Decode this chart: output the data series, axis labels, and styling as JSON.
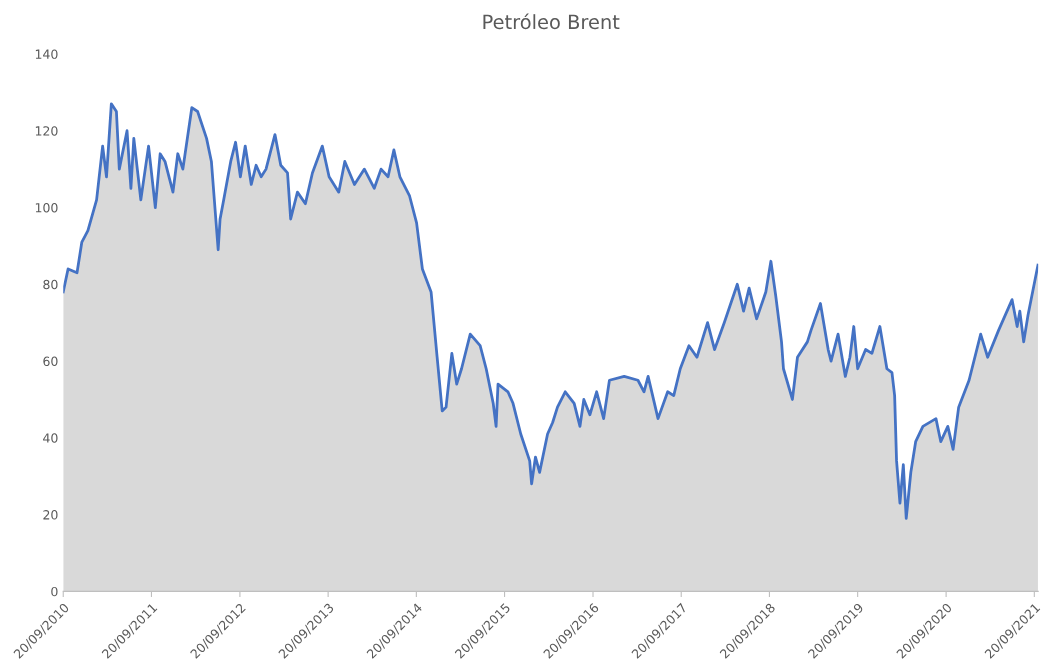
{
  "chart_data": {
    "type": "area",
    "title": "Petróleo Brent",
    "x": [
      "2010-09-20",
      "2010-10-10",
      "2010-11-16",
      "2010-12-06",
      "2010-12-31",
      "2011-02-05",
      "2011-03-02",
      "2011-03-18",
      "2011-04-07",
      "2011-04-28",
      "2011-05-10",
      "2011-06-11",
      "2011-06-27",
      "2011-07-09",
      "2011-08-07",
      "2011-09-08",
      "2011-10-06",
      "2011-10-26",
      "2011-11-15",
      "2011-12-18",
      "2012-01-07",
      "2012-01-28",
      "2012-03-05",
      "2012-03-29",
      "2012-05-05",
      "2012-05-25",
      "2012-06-22",
      "2012-06-30",
      "2012-07-15",
      "2012-08-13",
      "2012-09-02",
      "2012-09-22",
      "2012-10-12",
      "2012-11-06",
      "2012-11-26",
      "2012-12-17",
      "2013-01-06",
      "2013-02-12",
      "2013-03-08",
      "2013-04-05",
      "2013-04-18",
      "2013-05-16",
      "2013-06-18",
      "2013-07-17",
      "2013-08-27",
      "2013-09-24",
      "2013-11-03",
      "2013-11-28",
      "2014-01-07",
      "2014-02-17",
      "2014-03-30",
      "2014-04-27",
      "2014-05-26",
      "2014-06-19",
      "2014-07-14",
      "2014-08-23",
      "2014-09-21",
      "2014-10-15",
      "2014-11-20",
      "2014-12-15",
      "2015-01-05",
      "2015-01-21",
      "2015-02-14",
      "2015-03-06",
      "2015-03-26",
      "2015-05-01",
      "2015-06-11",
      "2015-07-06",
      "2015-08-04",
      "2015-08-16",
      "2015-08-24",
      "2015-10-04",
      "2015-10-25",
      "2015-11-26",
      "2016-01-02",
      "2016-01-10",
      "2016-01-26",
      "2016-02-12",
      "2016-03-16",
      "2016-04-06",
      "2016-04-26",
      "2016-05-28",
      "2016-07-04",
      "2016-07-28",
      "2016-08-13",
      "2016-09-07",
      "2016-10-05",
      "2016-11-03",
      "2016-11-27",
      "2017-01-27",
      "2017-03-25",
      "2017-04-19",
      "2017-05-06",
      "2017-06-16",
      "2017-07-26",
      "2017-08-20",
      "2017-09-16",
      "2017-10-22",
      "2017-11-24",
      "2018-01-07",
      "2018-02-05",
      "2018-03-17",
      "2018-05-10",
      "2018-06-05",
      "2018-06-28",
      "2018-07-29",
      "2018-09-05",
      "2018-09-26",
      "2018-10-16",
      "2018-11-09",
      "2018-11-17",
      "2018-12-24",
      "2019-01-14",
      "2019-02-24",
      "2019-03-11",
      "2019-04-19",
      "2019-05-21",
      "2019-06-02",
      "2019-07-01",
      "2019-07-31",
      "2019-08-19",
      "2019-09-04",
      "2019-09-20",
      "2019-10-23",
      "2019-11-18",
      "2019-12-21",
      "2020-01-19",
      "2020-02-09",
      "2020-02-20",
      "2020-02-28",
      "2020-03-13",
      "2020-03-27",
      "2020-04-08",
      "2020-04-27",
      "2020-05-17",
      "2020-06-16",
      "2020-08-09",
      "2020-08-29",
      "2020-09-27",
      "2020-10-19",
      "2020-11-11",
      "2020-12-24",
      "2021-02-10",
      "2021-03-11",
      "2021-04-25",
      "2021-06-20",
      "2021-07-11",
      "2021-07-22",
      "2021-08-07",
      "2021-08-25",
      "2021-10-05"
    ],
    "series": [
      {
        "color": "#4472c4",
        "values": [
          78,
          84,
          83,
          91,
          94,
          102,
          116,
          108,
          127,
          125,
          110,
          120,
          105,
          118,
          102,
          116,
          100,
          114,
          112,
          104,
          114,
          110,
          126,
          125,
          118,
          112,
          89,
          97,
          102,
          112,
          117,
          108,
          116,
          106,
          111,
          108,
          110,
          119,
          111,
          109,
          97,
          104,
          101,
          109,
          116,
          108,
          104,
          112,
          106,
          110,
          105,
          110,
          108,
          115,
          108,
          103,
          96,
          84,
          78,
          61,
          47,
          48,
          62,
          54,
          58,
          67,
          64,
          58,
          49,
          43,
          54,
          52,
          49,
          41,
          34,
          28,
          35,
          31,
          41,
          44,
          48,
          52,
          49,
          43,
          50,
          46,
          52,
          45,
          55,
          56,
          55,
          52,
          56,
          45,
          52,
          51,
          58,
          64,
          61,
          70,
          63,
          70,
          80,
          73,
          79,
          71,
          78,
          86,
          77,
          65,
          58,
          50,
          61,
          65,
          68,
          75,
          63,
          60,
          67,
          56,
          61,
          69,
          58,
          63,
          62,
          69,
          58,
          57,
          51,
          34,
          23,
          33,
          19,
          31,
          39,
          43,
          45,
          39,
          43,
          37,
          48,
          55,
          67,
          61,
          68,
          76,
          69,
          73,
          65,
          72,
          85
        ]
      }
    ],
    "xlim": [
      "2010-09-20",
      "2021-10-06"
    ],
    "xticks": [
      {
        "value": "2010-09-20",
        "label": "20/09/2010"
      },
      {
        "value": "2011-09-20",
        "label": "20/09/2011"
      },
      {
        "value": "2012-09-20",
        "label": "20/09/2012"
      },
      {
        "value": "2013-09-20",
        "label": "20/09/2013"
      },
      {
        "value": "2014-09-20",
        "label": "20/09/2014"
      },
      {
        "value": "2015-09-20",
        "label": "20/09/2015"
      },
      {
        "value": "2016-09-20",
        "label": "20/09/2016"
      },
      {
        "value": "2017-09-20",
        "label": "20/09/2017"
      },
      {
        "value": "2018-09-20",
        "label": "20/09/2018"
      },
      {
        "value": "2019-09-20",
        "label": "20/09/2019"
      },
      {
        "value": "2020-09-20",
        "label": "20/09/2020"
      },
      {
        "value": "2021-09-20",
        "label": "20/09/2021"
      }
    ],
    "ylim": [
      0,
      140
    ],
    "yticks": [
      0,
      20,
      40,
      60,
      80,
      100,
      120,
      140
    ],
    "grid": false,
    "legend": false
  }
}
